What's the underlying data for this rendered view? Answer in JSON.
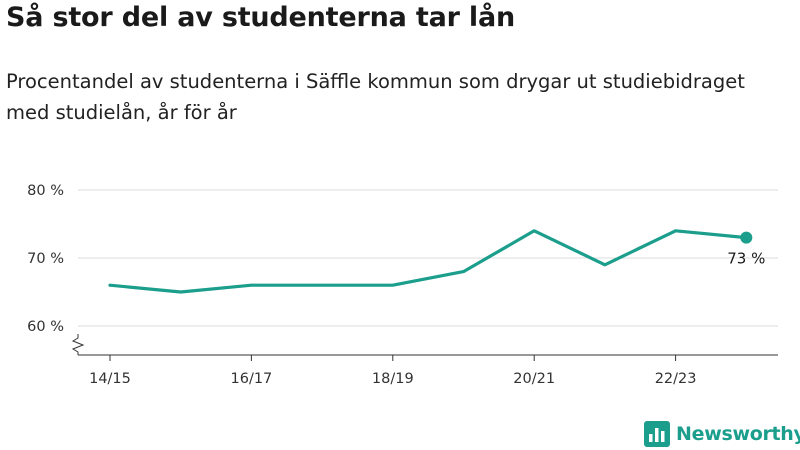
{
  "title": "Så stor del av studenterna tar lån",
  "subtitle": "Procentandel av studenterna i Säffle kommun som drygar ut studiebidraget med studielån, år för år",
  "brand": {
    "name": "Newsworthy",
    "color": "#1b9e8c",
    "icon": "bar-chart-logo-icon"
  },
  "chart_data": {
    "type": "line",
    "x": [
      "14/15",
      "15/16",
      "16/17",
      "17/18",
      "18/19",
      "19/20",
      "20/21",
      "21/22",
      "22/23",
      "23/24"
    ],
    "series": [
      {
        "values": [
          66,
          65,
          66,
          66,
          66,
          68,
          74,
          69,
          74,
          73
        ],
        "color": "#1b9e8c"
      }
    ],
    "x_tick_labels": [
      "14/15",
      "16/17",
      "18/19",
      "20/21",
      "22/23"
    ],
    "y_ticks": [
      {
        "value": 60,
        "label": "60 %"
      },
      {
        "value": 70,
        "label": "70 %"
      },
      {
        "value": 80,
        "label": "80 %"
      }
    ],
    "ylim": [
      60,
      80
    ],
    "y_axis_broken": true,
    "grid": true,
    "last_value_label": "73 %"
  }
}
